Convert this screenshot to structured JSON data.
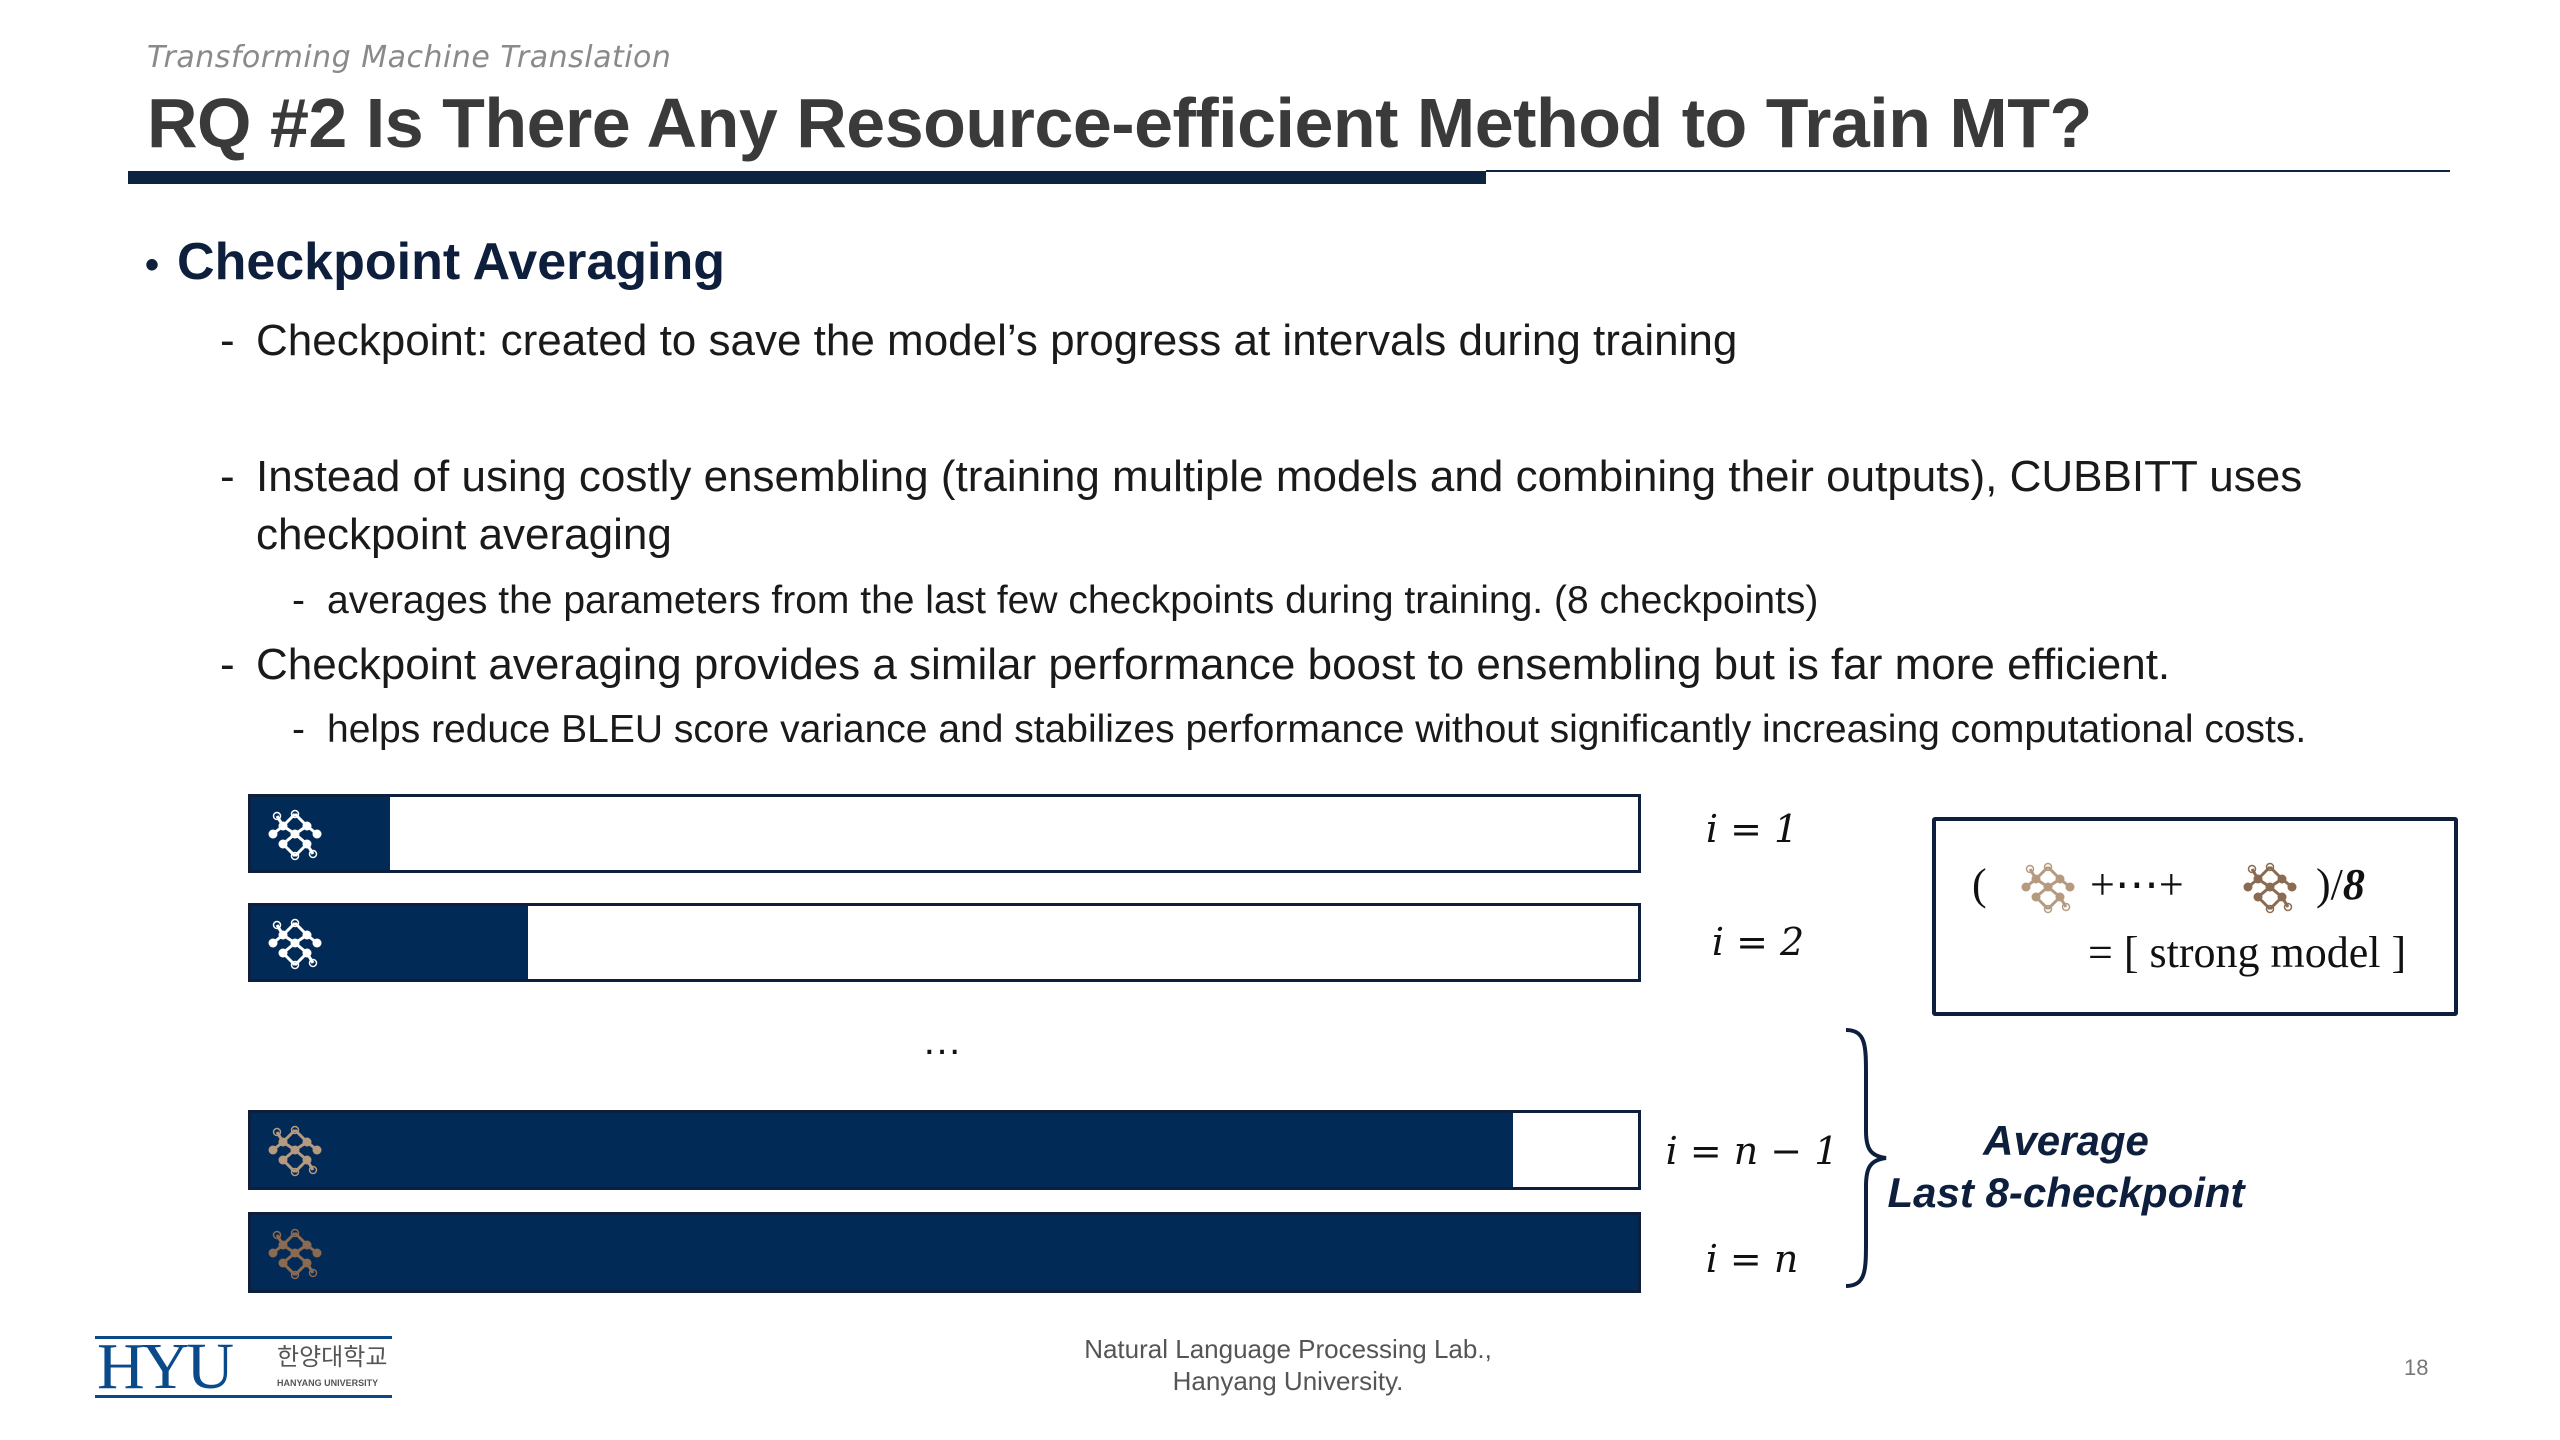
{
  "header": {
    "kicker": "Transforming Machine Translation",
    "title": "RQ #2 Is There Any Resource-efficient Method to Train MT?"
  },
  "content": {
    "bullet": "Checkpoint Averaging",
    "items": [
      {
        "text": "Checkpoint: created to save the model’s progress at intervals during training"
      },
      {
        "text": "Instead of using costly ensembling (training multiple models and combining their outputs), CUBBITT uses",
        "text2": "checkpoint averaging",
        "sub": "averages the parameters from the last few checkpoints during training. (8 checkpoints)"
      },
      {
        "text": "Checkpoint averaging provides a similar performance boost to ensembling but is far more efficient.",
        "sub": "helps reduce BLEU score variance and stabilizes performance without significantly increasing computational costs."
      }
    ],
    "dash": "-"
  },
  "diagram": {
    "bars": [
      {
        "label": "i = 1",
        "progress": 0.1,
        "icon": "network-icon-white"
      },
      {
        "label": "i = 2",
        "progress": 0.2,
        "icon": "network-icon-white"
      },
      {
        "label": "i = n − 1",
        "progress": 0.91,
        "icon": "network-icon-tan"
      },
      {
        "label": "i = n",
        "progress": 1.0,
        "icon": "network-icon-brown"
      }
    ],
    "ellipsis": "…",
    "average_line1": "Average",
    "average_line2": "Last 8-checkpoint",
    "formula": {
      "open": "(",
      "middle": "+⋯+",
      "close": ")/",
      "divisor": "8",
      "result": "= [ strong model ]"
    },
    "colors": {
      "bar_fill": "#022a57",
      "border": "#0d1f3c",
      "icon_tan": "#b59a80",
      "icon_brown": "#8a6a50"
    }
  },
  "footer": {
    "lab_line1": "Natural Language Processing Lab.,",
    "lab_line2": "Hanyang University.",
    "page": "18",
    "logo_text": "HYU",
    "logo_korean": "한양대학교",
    "logo_english": "HANYANG UNIVERSITY"
  }
}
